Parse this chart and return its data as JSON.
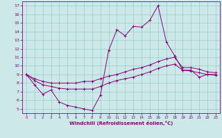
{
  "xlabel": "Windchill (Refroidissement éolien,°C)",
  "bg_color": "#cce8e8",
  "line_color": "#880077",
  "grid_color": "#99cccc",
  "xlim": [
    -0.5,
    23.5
  ],
  "ylim": [
    4.5,
    17.5
  ],
  "xticks": [
    0,
    1,
    2,
    3,
    4,
    5,
    6,
    7,
    8,
    9,
    10,
    11,
    12,
    13,
    14,
    15,
    16,
    17,
    18,
    19,
    20,
    21,
    22,
    23
  ],
  "yticks": [
    5,
    6,
    7,
    8,
    9,
    10,
    11,
    12,
    13,
    14,
    15,
    16,
    17
  ],
  "series1_x": [
    0,
    1,
    2,
    3,
    4,
    5,
    6,
    7,
    8,
    9,
    10,
    11,
    12,
    13,
    14,
    15,
    16,
    17,
    18,
    19,
    20,
    21,
    22,
    23
  ],
  "series1_y": [
    9.0,
    7.8,
    6.7,
    7.2,
    5.8,
    5.4,
    5.2,
    5.0,
    4.8,
    6.6,
    11.8,
    14.2,
    13.5,
    14.6,
    14.5,
    15.3,
    17.0,
    12.8,
    11.2,
    9.5,
    9.5,
    8.7,
    9.0,
    9.0
  ],
  "series2_x": [
    0,
    1,
    2,
    3,
    4,
    5,
    6,
    7,
    8,
    9,
    10,
    11,
    12,
    13,
    14,
    15,
    16,
    17,
    18,
    19,
    20,
    21,
    22,
    23
  ],
  "series2_y": [
    9.0,
    8.5,
    8.2,
    8.0,
    8.0,
    8.0,
    8.0,
    8.2,
    8.2,
    8.5,
    8.8,
    9.0,
    9.3,
    9.6,
    9.8,
    10.1,
    10.5,
    10.8,
    11.0,
    9.8,
    9.8,
    9.6,
    9.3,
    9.2
  ],
  "series3_x": [
    0,
    1,
    2,
    3,
    4,
    5,
    6,
    7,
    8,
    9,
    10,
    11,
    12,
    13,
    14,
    15,
    16,
    17,
    18,
    19,
    20,
    21,
    22,
    23
  ],
  "series3_y": [
    9.0,
    8.3,
    7.8,
    7.6,
    7.4,
    7.3,
    7.3,
    7.3,
    7.3,
    7.6,
    8.0,
    8.3,
    8.5,
    8.7,
    9.0,
    9.3,
    9.7,
    10.0,
    10.2,
    9.5,
    9.4,
    9.2,
    9.0,
    8.9
  ]
}
